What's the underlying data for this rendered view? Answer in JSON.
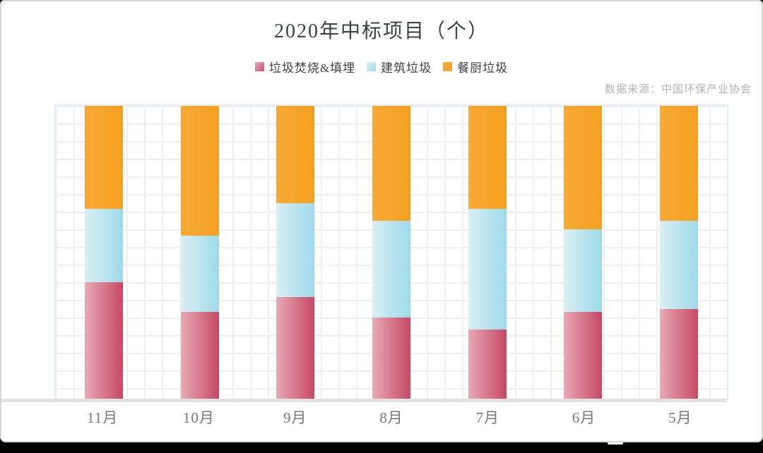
{
  "title": "2020年中标项目（个）",
  "source_note": "数据来源：中国环保产业协会",
  "colors": {
    "series1_light": "#e7a9b4",
    "series1_dark": "#c64964",
    "series2_light": "#daeff4",
    "series2_dark": "#9edae8",
    "series3_light": "#f6aa36",
    "series3_dark": "#f3a021",
    "legend_series1": "#c9566f",
    "legend_series2": "#a7dce8",
    "legend_series3": "#f5a42c",
    "axis_line": "#e2e2e2",
    "grid_line": "#efefef"
  },
  "chart_data": {
    "type": "bar",
    "subtype": "stacked-100-percent-column",
    "title": "2020年中标项目（个）",
    "xlabel": "",
    "ylabel": "",
    "ylim": [
      0,
      100
    ],
    "grid": true,
    "legend_position": "top",
    "categories": [
      "11月",
      "10月",
      "9月",
      "8月",
      "7月",
      "6月",
      "5月"
    ],
    "series": [
      {
        "name": "垃圾焚烧&填埋",
        "unit": "percent",
        "values": [
          40,
          30,
          35,
          28,
          24,
          30,
          31
        ]
      },
      {
        "name": "建筑垃圾",
        "unit": "percent",
        "values": [
          25,
          26,
          32,
          33,
          41,
          28,
          30
        ]
      },
      {
        "name": "餐厨垃圾",
        "unit": "percent",
        "values": [
          35,
          44,
          33,
          39,
          35,
          42,
          39
        ]
      }
    ]
  }
}
